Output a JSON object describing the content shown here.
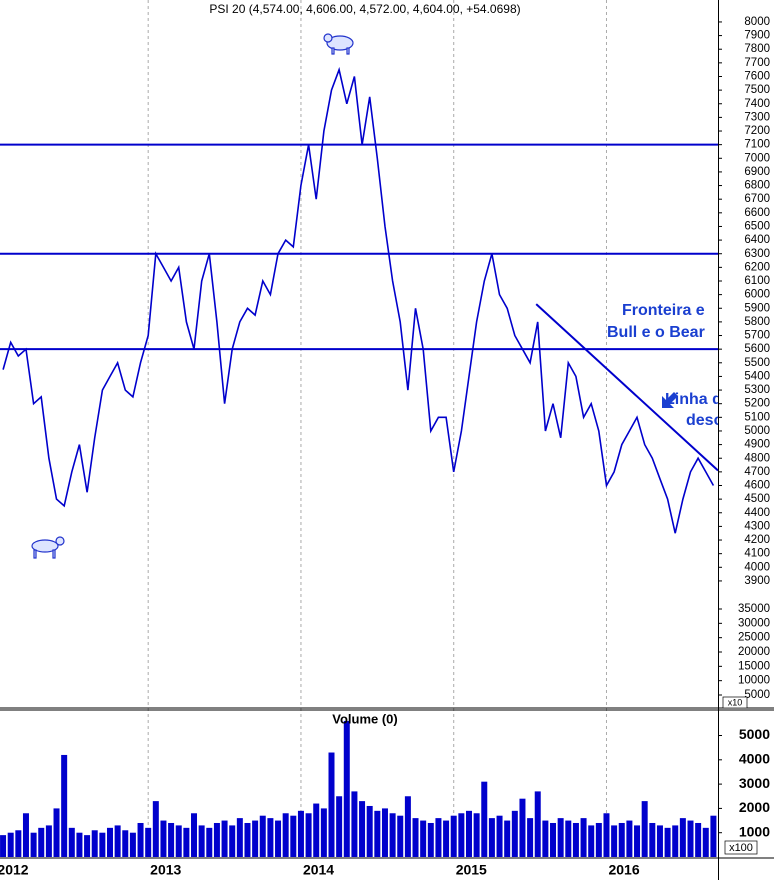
{
  "chart_data": [
    {
      "type": "line",
      "title": "PSI 20 (4,574.00, 4,606.00, 4,572.00, 4,604.00, +54.0698)",
      "color": "#0000cc",
      "x": [
        2012.05,
        2012.1,
        2012.15,
        2012.2,
        2012.25,
        2012.3,
        2012.35,
        2012.4,
        2012.45,
        2012.5,
        2012.55,
        2012.6,
        2012.65,
        2012.7,
        2012.75,
        2012.8,
        2012.85,
        2012.9,
        2012.95,
        2013.0,
        2013.05,
        2013.1,
        2013.15,
        2013.2,
        2013.25,
        2013.3,
        2013.35,
        2013.4,
        2013.45,
        2013.5,
        2013.55,
        2013.6,
        2013.65,
        2013.7,
        2013.75,
        2013.8,
        2013.85,
        2013.9,
        2013.95,
        2014.0,
        2014.05,
        2014.1,
        2014.15,
        2014.2,
        2014.25,
        2014.3,
        2014.35,
        2014.4,
        2014.45,
        2014.5,
        2014.55,
        2014.6,
        2014.65,
        2014.7,
        2014.75,
        2014.8,
        2014.85,
        2014.9,
        2014.95,
        2015.0,
        2015.05,
        2015.1,
        2015.15,
        2015.2,
        2015.25,
        2015.3,
        2015.35,
        2015.4,
        2015.45,
        2015.5,
        2015.55,
        2015.6,
        2015.65,
        2015.7,
        2015.75,
        2015.8,
        2015.85,
        2015.9,
        2015.95,
        2016.0,
        2016.05,
        2016.1,
        2016.15,
        2016.2,
        2016.25,
        2016.3,
        2016.35,
        2016.4,
        2016.45,
        2016.5,
        2016.55,
        2016.6,
        2016.65,
        2016.7
      ],
      "values": [
        5450,
        5650,
        5550,
        5600,
        5200,
        5250,
        4800,
        4500,
        4450,
        4700,
        4900,
        4550,
        4950,
        5300,
        5400,
        5500,
        5300,
        5250,
        5500,
        5700,
        6300,
        6200,
        6100,
        6200,
        5800,
        5600,
        6100,
        6300,
        5800,
        5200,
        5600,
        5800,
        5900,
        5850,
        6100,
        6000,
        6300,
        6400,
        6350,
        6800,
        7100,
        6700,
        7200,
        7500,
        7650,
        7400,
        7600,
        7100,
        7450,
        7000,
        6500,
        6100,
        5800,
        5300,
        5900,
        5600,
        5000,
        5100,
        5100,
        4700,
        5000,
        5400,
        5800,
        6100,
        6300,
        6000,
        5900,
        5700,
        5600,
        5500,
        5800,
        5000,
        5200,
        4950,
        5500,
        5400,
        5100,
        5200,
        5000,
        4600,
        4700,
        4900,
        5000,
        5100,
        4900,
        4800,
        4650,
        4500,
        4250,
        4500,
        4700,
        4800,
        4700,
        4600
      ],
      "xlim": [
        2012.03,
        2016.73
      ],
      "ylim": [
        2968,
        8161
      ],
      "yticks": [
        3900,
        4000,
        4100,
        4200,
        4300,
        4400,
        4500,
        4600,
        4700,
        4800,
        4900,
        5000,
        5100,
        5200,
        5300,
        5400,
        5500,
        5600,
        5700,
        5800,
        5900,
        6000,
        6100,
        6200,
        6300,
        6400,
        6500,
        6600,
        6700,
        6800,
        6900,
        7000,
        7100,
        7200,
        7300,
        7400,
        7500,
        7600,
        7700,
        7800,
        7900,
        8000
      ],
      "y2lim": [
        5000,
        35000
      ],
      "y2ticks": [
        5000,
        10000,
        15000,
        20000,
        25000,
        30000,
        35000
      ],
      "y2_unit": "x10",
      "reference_lines": [
        7100,
        6300,
        5600
      ],
      "trendline": {
        "x": [
          2015.54,
          2016.73
        ],
        "values": [
          5930,
          4710
        ]
      },
      "annotations": [
        "Fronteira e",
        "Bull e o Bear",
        "Linha d",
        "desc"
      ]
    },
    {
      "type": "bar",
      "title": "Volume (0)",
      "color": "#0000cc",
      "x": [
        2012.05,
        2012.1,
        2012.15,
        2012.2,
        2012.25,
        2012.3,
        2012.35,
        2012.4,
        2012.45,
        2012.5,
        2012.55,
        2012.6,
        2012.65,
        2012.7,
        2012.75,
        2012.8,
        2012.85,
        2012.9,
        2012.95,
        2013.0,
        2013.05,
        2013.1,
        2013.15,
        2013.2,
        2013.25,
        2013.3,
        2013.35,
        2013.4,
        2013.45,
        2013.5,
        2013.55,
        2013.6,
        2013.65,
        2013.7,
        2013.75,
        2013.8,
        2013.85,
        2013.9,
        2013.95,
        2014.0,
        2014.05,
        2014.1,
        2014.15,
        2014.2,
        2014.25,
        2014.3,
        2014.35,
        2014.4,
        2014.45,
        2014.5,
        2014.55,
        2014.6,
        2014.65,
        2014.7,
        2014.75,
        2014.8,
        2014.85,
        2014.9,
        2014.95,
        2015.0,
        2015.05,
        2015.1,
        2015.15,
        2015.2,
        2015.25,
        2015.3,
        2015.35,
        2015.4,
        2015.45,
        2015.5,
        2015.55,
        2015.6,
        2015.65,
        2015.7,
        2015.75,
        2015.8,
        2015.85,
        2015.9,
        2015.95,
        2016.0,
        2016.05,
        2016.1,
        2016.15,
        2016.2,
        2016.25,
        2016.3,
        2016.35,
        2016.4,
        2016.45,
        2016.5,
        2016.55,
        2016.6,
        2016.65,
        2016.7
      ],
      "values": [
        900,
        1000,
        1100,
        1800,
        1000,
        1200,
        1300,
        2000,
        4200,
        1200,
        1000,
        900,
        1100,
        1000,
        1200,
        1300,
        1100,
        1000,
        1400,
        1200,
        2300,
        1500,
        1400,
        1300,
        1200,
        1800,
        1300,
        1200,
        1400,
        1500,
        1300,
        1600,
        1400,
        1500,
        1700,
        1600,
        1500,
        1800,
        1700,
        1900,
        1800,
        2200,
        2000,
        4300,
        2500,
        5600,
        2700,
        2300,
        2100,
        1900,
        2000,
        1800,
        1700,
        2500,
        1600,
        1500,
        1400,
        1600,
        1500,
        1700,
        1800,
        1900,
        1800,
        3100,
        1600,
        1700,
        1500,
        1900,
        2400,
        1600,
        2700,
        1500,
        1400,
        1600,
        1500,
        1400,
        1600,
        1300,
        1400,
        1800,
        1300,
        1400,
        1500,
        1300,
        2300,
        1400,
        1300,
        1200,
        1300,
        1600,
        1500,
        1400,
        1200,
        1700
      ],
      "xlim": [
        2012.03,
        2016.73
      ],
      "xticks": [
        2012,
        2013,
        2014,
        2015,
        2016
      ],
      "ylim": [
        0,
        6050
      ],
      "yticks": [
        1000,
        2000,
        3000,
        4000,
        5000
      ],
      "y_unit": "x100"
    }
  ]
}
